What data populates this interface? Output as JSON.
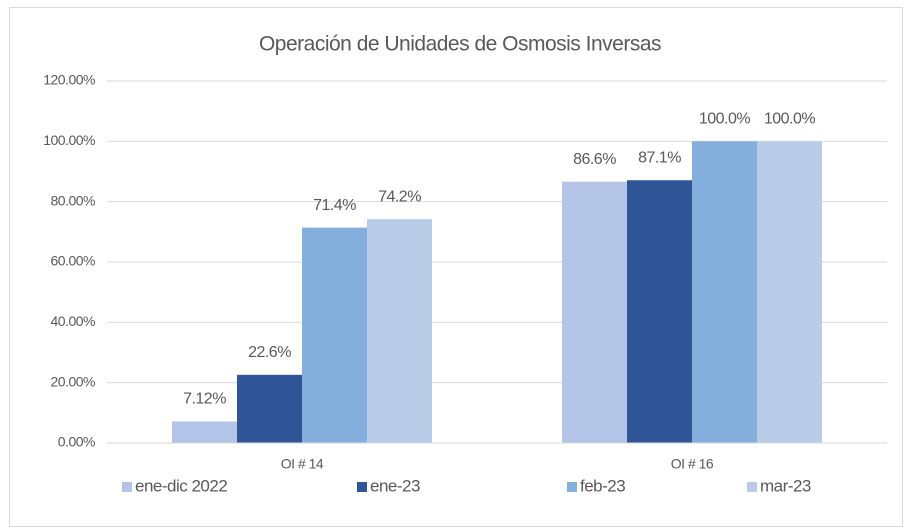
{
  "chart_data": {
    "type": "bar",
    "title": "Operación de Unidades de Osmosis Inversas",
    "categories": [
      "OI # 14",
      "OI # 16"
    ],
    "series": [
      {
        "name": "ene-dic 2022",
        "color": "#b4c4e6",
        "values": [
          7.12,
          86.6
        ],
        "value_labels": [
          "7.12%",
          "86.6%"
        ]
      },
      {
        "name": "ene-23",
        "color": "#2f5597",
        "values": [
          22.6,
          87.1
        ],
        "value_labels": [
          "22.6%",
          "87.1%"
        ]
      },
      {
        "name": "feb-23",
        "color": "#84aedc",
        "values": [
          71.4,
          100.0
        ],
        "value_labels": [
          "71.4%",
          "100.0%"
        ]
      },
      {
        "name": "mar-23",
        "color": "#b9cde9",
        "values": [
          74.2,
          100.0
        ],
        "value_labels": [
          "74.2%",
          "100.0%"
        ]
      }
    ],
    "ylim": [
      0,
      120
    ],
    "yticks": [
      {
        "value": 0,
        "label": "0.00%"
      },
      {
        "value": 20,
        "label": "20.00%"
      },
      {
        "value": 40,
        "label": "40.00%"
      },
      {
        "value": 60,
        "label": "60.00%"
      },
      {
        "value": 80,
        "label": "80.00%"
      },
      {
        "value": 100,
        "label": "100.00%"
      },
      {
        "value": 120,
        "label": "120.00%"
      }
    ],
    "grid": true,
    "legend": "bottom"
  }
}
